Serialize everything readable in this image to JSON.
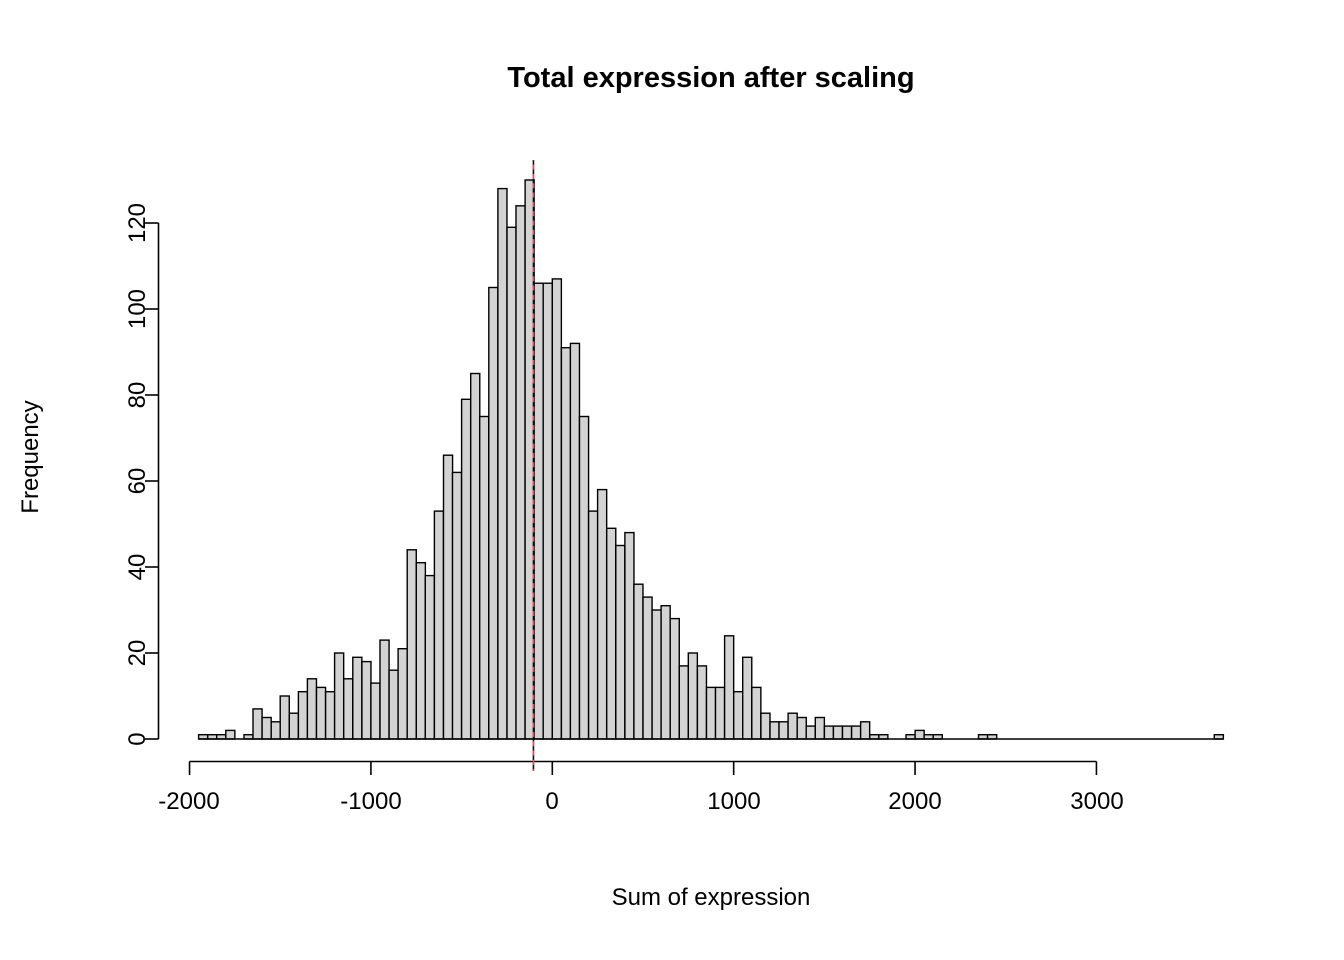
{
  "figure": {
    "background": "#ffffff"
  },
  "chart_data": {
    "type": "bar",
    "subtype": "histogram",
    "title": "Total expression after scaling",
    "xlabel": "Sum of expression",
    "ylabel": "Frequency",
    "bin_start": -1950,
    "bin_width": 50,
    "counts": [
      1,
      1,
      1,
      2,
      0,
      1,
      7,
      5,
      4,
      10,
      6,
      11,
      14,
      12,
      11,
      20,
      14,
      19,
      18,
      13,
      23,
      16,
      21,
      44,
      41,
      38,
      53,
      66,
      62,
      79,
      85,
      75,
      105,
      128,
      119,
      124,
      130,
      106,
      106,
      107,
      91,
      92,
      75,
      53,
      58,
      49,
      45,
      48,
      36,
      33,
      30,
      31,
      28,
      17,
      20,
      17,
      12,
      12,
      24,
      11,
      19,
      12,
      6,
      4,
      4,
      6,
      5,
      3,
      5,
      3,
      3,
      3,
      3,
      4,
      1,
      1,
      0,
      0,
      1,
      2,
      1,
      1,
      0,
      0,
      0,
      0,
      1,
      1,
      0,
      0,
      0,
      0,
      0,
      0,
      0,
      0,
      0,
      0,
      0,
      0,
      0,
      0,
      0,
      0,
      0,
      0,
      0,
      0,
      0,
      0,
      0,
      0,
      1
    ],
    "x_tick_labels": [
      "-2000",
      "-1000",
      "0",
      "1000",
      "2000",
      "3000"
    ],
    "x_tick_values": [
      -2000,
      -1000,
      0,
      1000,
      2000,
      3000
    ],
    "y_tick_labels": [
      "0",
      "20",
      "40",
      "60",
      "80",
      "100",
      "120"
    ],
    "y_tick_values": [
      0,
      20,
      40,
      60,
      80,
      100,
      120
    ],
    "xlim": [
      -2176,
      3926
    ],
    "ylim": [
      0,
      135
    ],
    "grid": "off",
    "legend": "none",
    "reference_lines": [
      {
        "x": -104,
        "style": "dashed",
        "color": "#000000"
      },
      {
        "x": -104,
        "style": "dashed",
        "color": "#d94f62"
      }
    ],
    "colors": {
      "bar_fill": "#d3d3d3",
      "bar_border": "#000000",
      "axis": "#000000",
      "vline_red": "#d94f62",
      "vline_black": "#111111"
    }
  }
}
